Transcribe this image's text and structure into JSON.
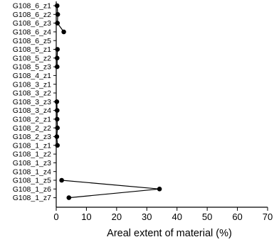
{
  "chart_data": {
    "type": "line",
    "orientation": "horizontal",
    "title": "",
    "xlabel": "Areal extent of material (%)",
    "ylabel": "",
    "xlim": [
      0,
      70
    ],
    "xticks": [
      0,
      10,
      20,
      30,
      40,
      50,
      60,
      70
    ],
    "grid": false,
    "legend": "none",
    "categories": [
      "G108_6_z1",
      "G108_6_z2",
      "G108_6_z3",
      "G108_6_z4",
      "G108_6_z5",
      "G108_5_z1",
      "G108_5_z2",
      "G108_5_z3",
      "G108_4_z1",
      "G108_3_z1",
      "G108_3_z2",
      "G108_3_z3",
      "G108_3_z4",
      "G108_2_z1",
      "G108_2_z2",
      "G108_2_z3",
      "G108_1_z1",
      "G108_1_z2",
      "G108_1_z3",
      "G108_1_z4",
      "G108_1_z5",
      "G108_1_z6",
      "G108_1_z7"
    ],
    "series": [
      {
        "values": [
          0.3,
          0.5,
          0.4,
          2.5,
          null,
          0.4,
          0.3,
          0.3,
          null,
          null,
          null,
          0.2,
          0.3,
          0.3,
          0.4,
          0.2,
          0.4,
          null,
          null,
          null,
          1.8,
          34.2,
          4.2
        ],
        "color": "#000000"
      }
    ]
  }
}
